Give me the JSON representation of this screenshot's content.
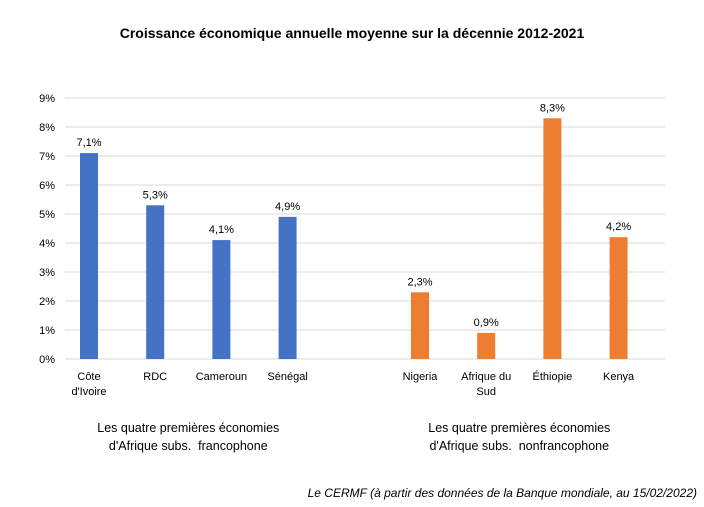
{
  "chart_data": {
    "type": "bar",
    "title": "Croissance économique annuelle moyenne sur la décennie 2012-2021",
    "ylim": [
      0,
      9
    ],
    "yticks": [
      "0%",
      "1%",
      "2%",
      "3%",
      "4%",
      "5%",
      "6%",
      "7%",
      "8%",
      "9%"
    ],
    "grid": true,
    "groups": [
      {
        "label_lines": [
          "Les quatre premières économies",
          "d'Afrique subs.  francophone"
        ],
        "color": "#4472C4",
        "categories": [
          [
            "Côte",
            "d'Ivoire"
          ],
          [
            "RDC"
          ],
          [
            "Cameroun"
          ],
          [
            "Sénégal"
          ]
        ],
        "values": [
          7.1,
          5.3,
          4.1,
          4.9
        ],
        "data_labels": [
          "7,1%",
          "5,3%",
          "4,1%",
          "4,9%"
        ]
      },
      {
        "label_lines": [
          "Les quatre premières économies",
          "d'Afrique subs.  nonfrancophone"
        ],
        "color": "#ED7D31",
        "categories": [
          [
            "Nigeria"
          ],
          [
            "Afrique du",
            "Sud"
          ],
          [
            "Éthiopie"
          ],
          [
            "Kenya"
          ]
        ],
        "values": [
          2.3,
          0.9,
          8.3,
          4.2
        ],
        "data_labels": [
          "2,3%",
          "0,9%",
          "8,3%",
          "4,2%"
        ]
      }
    ],
    "source": "Le CERMF (à partir des données de la Banque mondiale, au 15/02/2022)"
  }
}
